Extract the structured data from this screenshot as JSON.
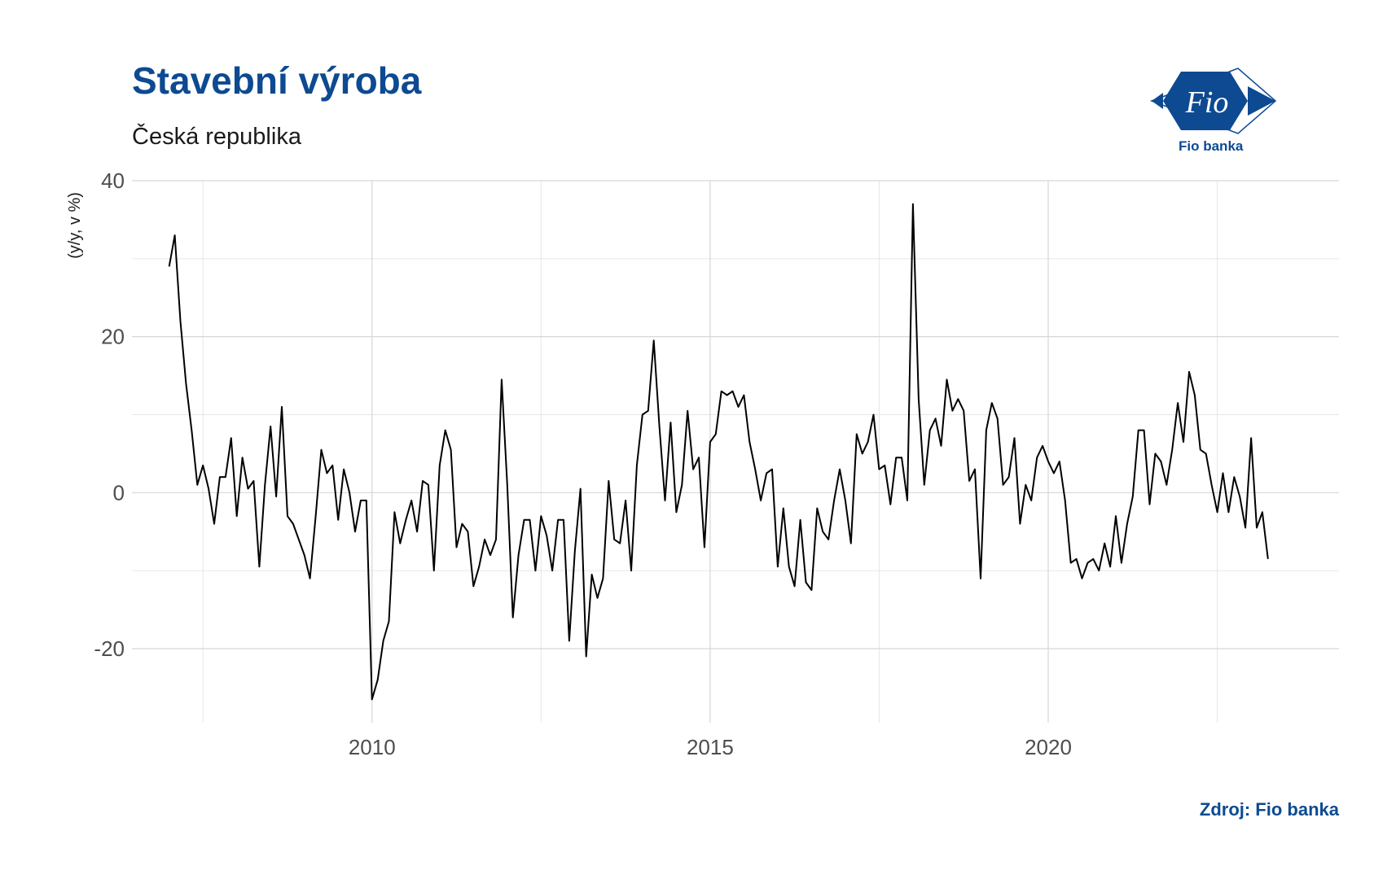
{
  "title": "Stavební výroba",
  "subtitle": "Česká republika",
  "source": "Zdroj: Fio banka",
  "logo": {
    "mark_text": "Fio",
    "caption": "Fio banka",
    "icon": "fio-banka-logo-icon"
  },
  "colors": {
    "title": "#0d4a91",
    "line": "#000000",
    "grid": "#d9d9d9",
    "brand": "#0d4a91"
  },
  "chart_data": {
    "type": "line",
    "title": "Stavební výroba",
    "subtitle": "Česká republika",
    "xlabel": "",
    "ylabel": "(y/y, v %)",
    "x_start": "2007-01",
    "x_step": "1 month",
    "x_ticks": [
      2010,
      2015,
      2020
    ],
    "y_ticks": [
      -20,
      0,
      20,
      40
    ],
    "xlim": [
      2006.45,
      2024.3
    ],
    "ylim": [
      -29.5,
      40
    ],
    "grid": true,
    "legend": "none",
    "series": [
      {
        "values": [
          29,
          33,
          22,
          14,
          8,
          1,
          3.5,
          0.5,
          -4,
          2,
          2,
          7,
          -3,
          4.5,
          0.5,
          1.5,
          -9.5,
          1,
          8.5,
          -0.5,
          11,
          -3,
          -4,
          -6,
          -8,
          -11,
          -3,
          5.5,
          2.5,
          3.5,
          -3.5,
          3,
          0,
          -5,
          -1,
          -1,
          -26.5,
          -24,
          -19,
          -16.5,
          -2.5,
          -6.5,
          -3.5,
          -1,
          -5,
          1.5,
          1,
          -10,
          3.5,
          8,
          5.5,
          -7,
          -4,
          -5,
          -12,
          -9.5,
          -6,
          -8,
          -6,
          14.5,
          1,
          -16,
          -8,
          -3.5,
          -3.5,
          -10,
          -3,
          -5.5,
          -10,
          -3.5,
          -3.5,
          -19,
          -7.5,
          0.5,
          -21,
          -10.5,
          -13.5,
          -11,
          1.5,
          -6,
          -6.5,
          -1,
          -10,
          3.5,
          10,
          10.5,
          19.5,
          8.5,
          -1,
          9,
          -2.5,
          1,
          10.5,
          3,
          4.5,
          -7,
          6.5,
          7.5,
          13,
          12.5,
          13,
          11,
          12.5,
          6.5,
          3,
          -1,
          2.5,
          3,
          -9.5,
          -2,
          -9.5,
          -12,
          -3.5,
          -11.5,
          -12.5,
          -2,
          -5,
          -6,
          -1,
          3,
          -1,
          -6.5,
          7.5,
          5,
          6.5,
          10,
          3,
          3.5,
          -1.5,
          4.5,
          4.5,
          -1,
          37,
          12,
          1,
          8,
          9.5,
          6,
          14.5,
          10.5,
          12,
          10.5,
          1.5,
          3,
          -11,
          8,
          11.5,
          9.5,
          1,
          2,
          7,
          -4,
          1,
          -1,
          4.5,
          6,
          4,
          2.5,
          4,
          -1,
          -9,
          -8.5,
          -11,
          -9,
          -8.5,
          -10,
          -6.5,
          -9.5,
          -3,
          -9,
          -4,
          -0.5,
          8,
          8,
          -1.5,
          5,
          4,
          1,
          5.5,
          11.5,
          6.5,
          15.5,
          12.5,
          5.5,
          5,
          1,
          -2.5,
          2.5,
          -2.5,
          2,
          -0.5,
          -4.5,
          7,
          -4.5,
          -2.5,
          -8.5
        ]
      }
    ]
  }
}
